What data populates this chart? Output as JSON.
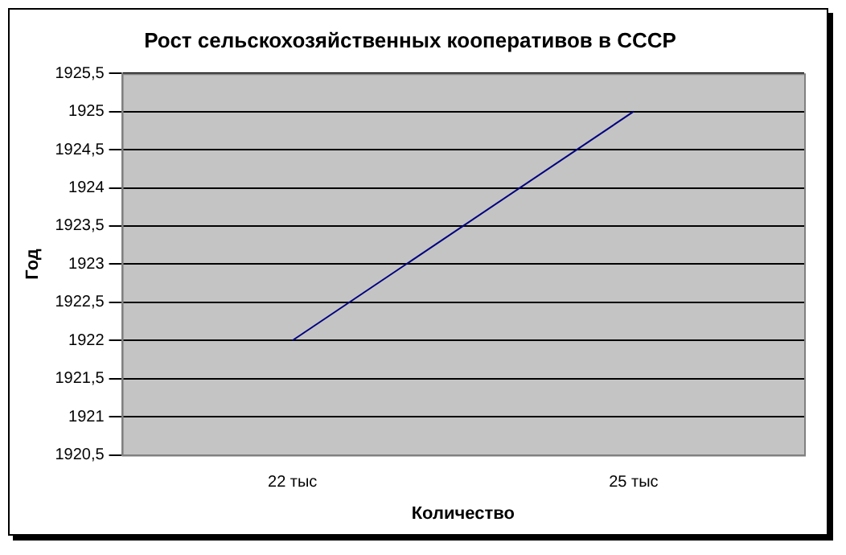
{
  "chart_data": {
    "type": "line",
    "title": "Рост сельскохозяйственных кооперативов в СССР",
    "xlabel": "Количество",
    "ylabel": "Год",
    "categories": [
      "22 тыс",
      "25 тыс"
    ],
    "series": [
      {
        "color": "#000080",
        "values": [
          1922,
          1925
        ]
      }
    ],
    "ylim": [
      1920.5,
      1925.5
    ],
    "yticks": [
      {
        "value": 1920.5,
        "label": "1920,5"
      },
      1921,
      {
        "value": 1921.5,
        "label": "1921,5"
      },
      1922,
      {
        "value": 1922.5,
        "label": "1922,5"
      },
      1923,
      {
        "value": 1923.5,
        "label": "1923,5"
      },
      1924,
      {
        "value": 1924.5,
        "label": "1924,5"
      },
      1925,
      {
        "value": 1925.5,
        "label": "1925,5"
      }
    ],
    "grid": "y",
    "marker": "none",
    "line_style": "solid"
  }
}
